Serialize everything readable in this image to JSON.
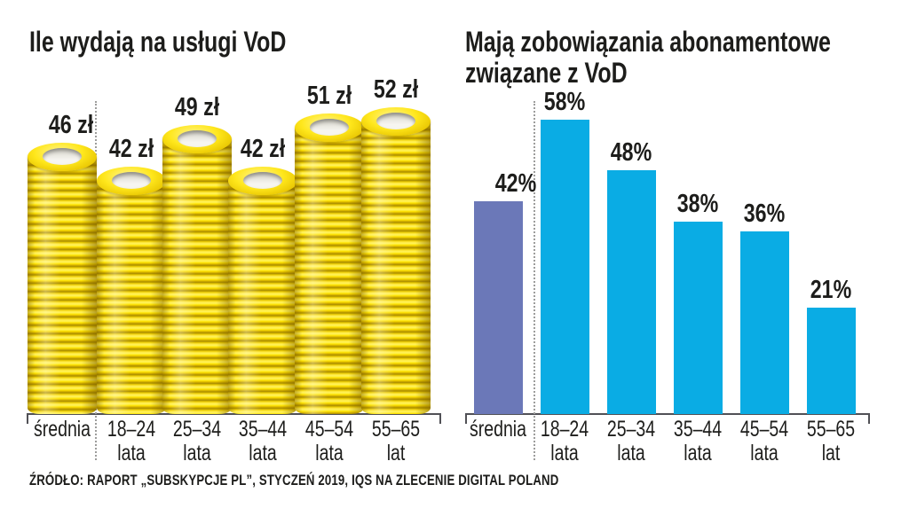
{
  "background": "#FFFFFF",
  "text_color": "#1D1D1B",
  "axis_color": "#515156",
  "separator_color": "#9D9D9C",
  "source_line": "ŹRÓDŁO: RAPORT „SUBSKYPCJE PL”, STYCZEŃ 2019, IQS NA ZLECENIE DIGITAL POLAND",
  "chart_data": [
    {
      "type": "bar",
      "style": "coin-stack",
      "title": "Ile wydają na usługi VoD",
      "unit": "zł",
      "categories": [
        "średnia",
        "18–24 lata",
        "25–34 lata",
        "35–44 lata",
        "45–54 lata",
        "55–65 lat"
      ],
      "category_lines": [
        [
          "średnia"
        ],
        [
          "18–24",
          "lata"
        ],
        [
          "25–34",
          "lata"
        ],
        [
          "35–44",
          "lata"
        ],
        [
          "45–54",
          "lata"
        ],
        [
          "55–65",
          "lat"
        ]
      ],
      "values": [
        46,
        42,
        49,
        42,
        51,
        52
      ],
      "value_labels": [
        "46 zł",
        "42 zł",
        "49 zł",
        "42 zł",
        "51 zł",
        "52 zł"
      ],
      "ylim": [
        0,
        55
      ],
      "grid": false,
      "legend": "none",
      "separator_note": "dotted line separates average (średnia) from age groups",
      "colors": {
        "coin_yellow": "#FFE400",
        "coin_shadow": "#A88C00",
        "coin_hole": "#F1EFE9"
      }
    },
    {
      "type": "bar",
      "style": "flat-bar",
      "title": "Mają zobowiązania abonamentowe związane z VoD",
      "title_lines": [
        "Mają zobowiązania abonamentowe",
        "związane z VoD"
      ],
      "unit": "%",
      "categories": [
        "średnia",
        "18–24 lata",
        "25–34 lata",
        "35–44 lata",
        "45–54 lata",
        "55–65 lat"
      ],
      "category_lines": [
        [
          "średnia"
        ],
        [
          "18–24",
          "lata"
        ],
        [
          "25–34",
          "lata"
        ],
        [
          "35–44",
          "lata"
        ],
        [
          "45–54",
          "lata"
        ],
        [
          "55–65",
          "lat"
        ]
      ],
      "values": [
        42,
        58,
        48,
        38,
        36,
        21
      ],
      "value_labels": [
        "42%",
        "58%",
        "48%",
        "38%",
        "36%",
        "21%"
      ],
      "ylim": [
        0,
        65
      ],
      "grid": false,
      "legend": "none",
      "separator_note": "dotted line separates average (średnia) from age groups",
      "bar_colors": [
        "#6B78B8",
        "#0AACE4",
        "#0AACE4",
        "#0AACE4",
        "#0AACE4",
        "#0AACE4"
      ],
      "highlight": {
        "index": 0,
        "color": "#6B78B8",
        "meaning": "average (średnia)"
      }
    }
  ]
}
